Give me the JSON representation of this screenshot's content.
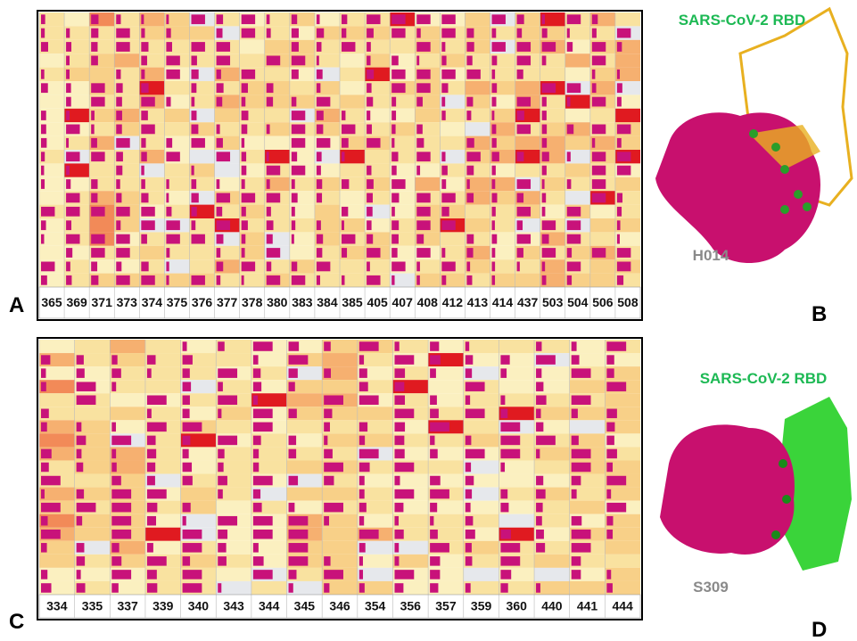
{
  "panels": [
    {
      "letter": "A",
      "residues": [
        365,
        369,
        371,
        373,
        374,
        375,
        376,
        377,
        378,
        380,
        383,
        384,
        385,
        405,
        407,
        408,
        412,
        413,
        414,
        437,
        503,
        504,
        506,
        508
      ]
    },
    {
      "letter": "C",
      "residues": [
        334,
        335,
        337,
        339,
        340,
        343,
        344,
        345,
        346,
        354,
        356,
        357,
        359,
        360,
        440,
        441,
        444
      ]
    }
  ],
  "structures": [
    {
      "letter": "B",
      "title": "SARS-CoV-2 RBD",
      "antibody": "H014"
    },
    {
      "letter": "D",
      "title": "SARS-CoV-2 RBD",
      "antibody": "S309"
    }
  ]
}
